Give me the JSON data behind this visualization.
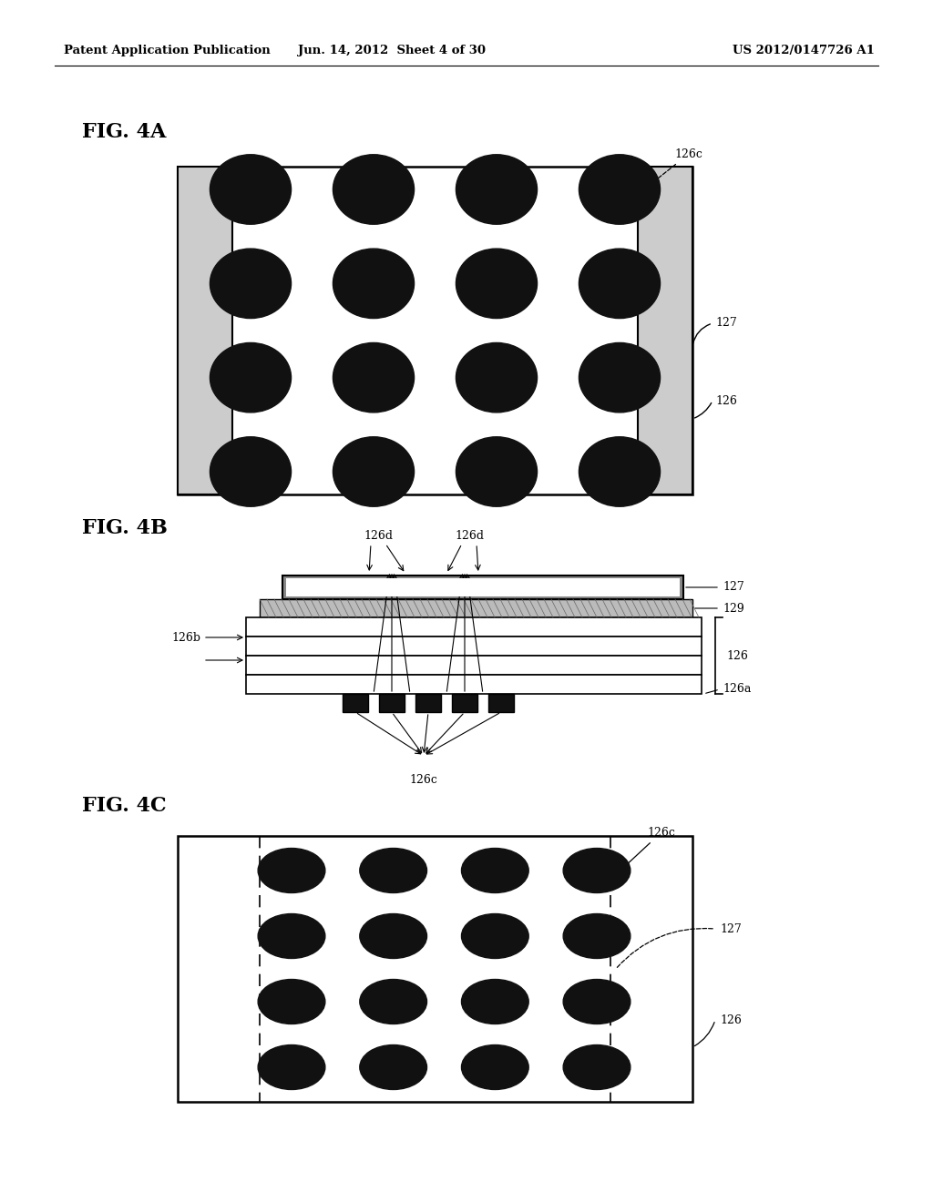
{
  "header_left": "Patent Application Publication",
  "header_center": "Jun. 14, 2012  Sheet 4 of 30",
  "header_right": "US 2012/0147726 A1",
  "fig4a_label": "FIG. 4A",
  "fig4b_label": "FIG. 4B",
  "fig4c_label": "FIG. 4C",
  "bg_color": "#ffffff",
  "line_color": "#000000",
  "dot_color": "#111111"
}
